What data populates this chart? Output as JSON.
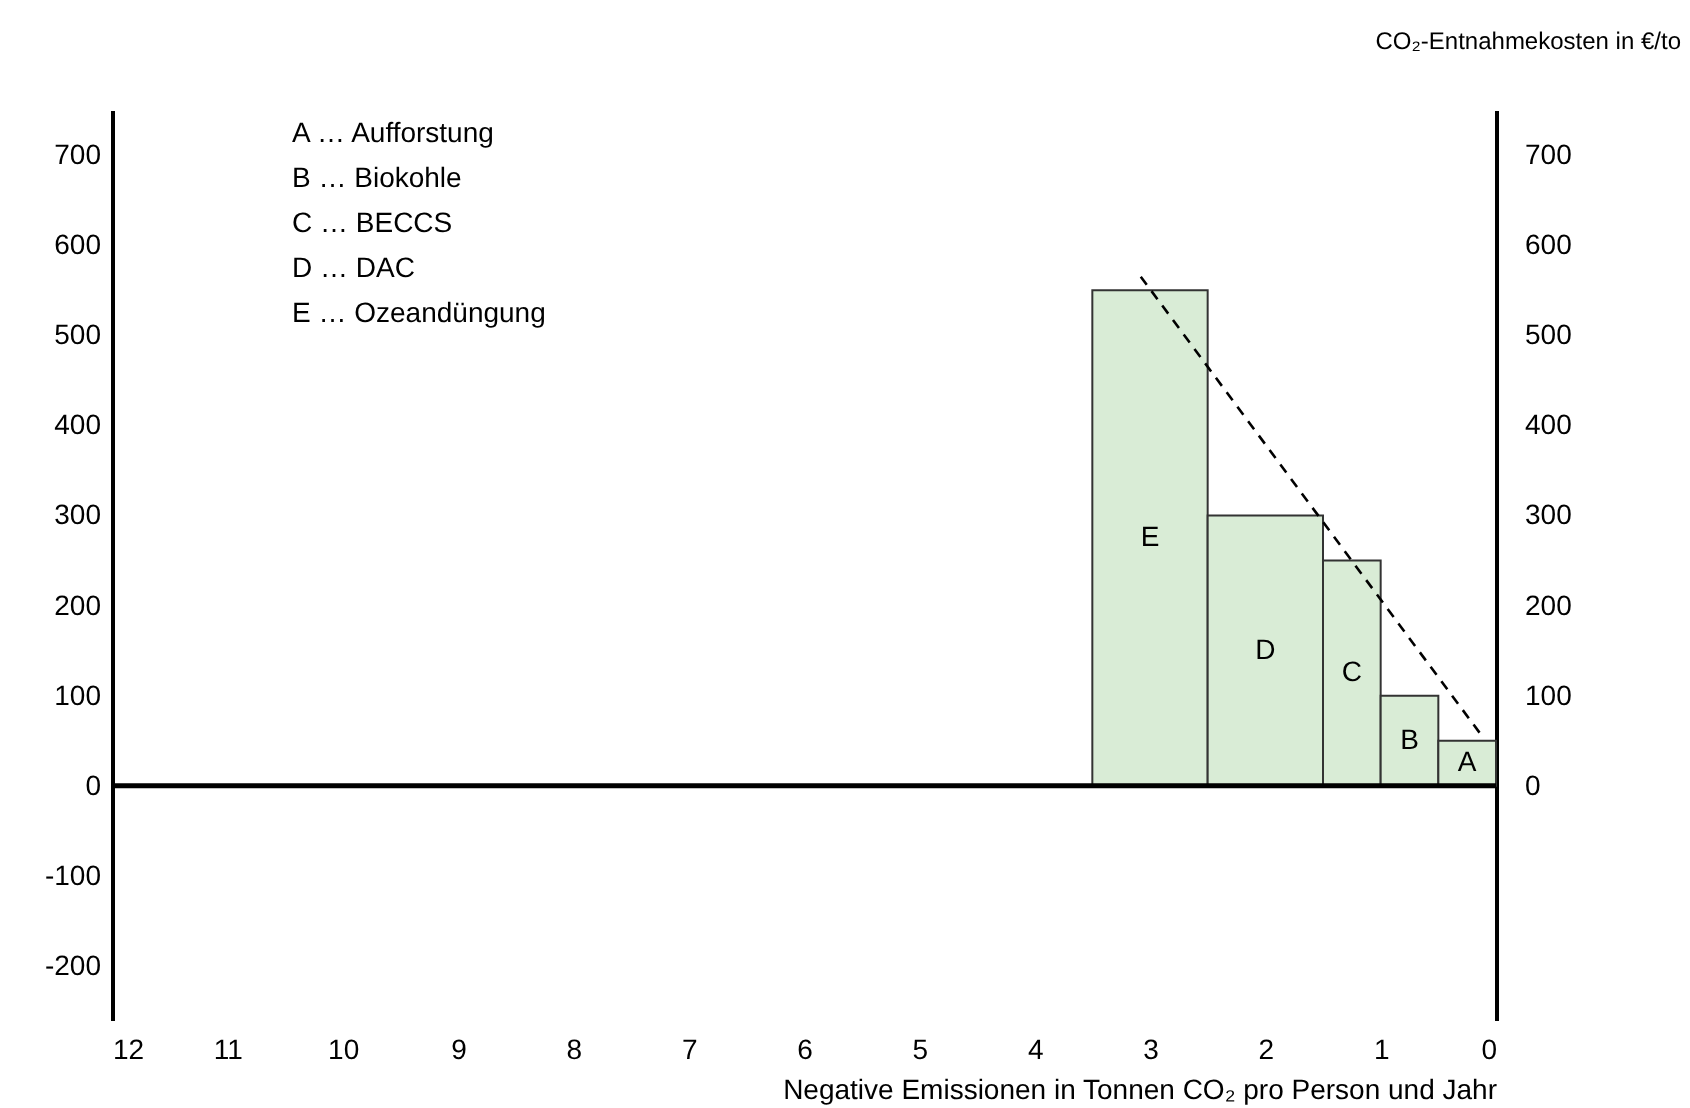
{
  "chart_data": {
    "type": "histogram",
    "bins": [
      3.5,
      2.5,
      1.5,
      1,
      0.5,
      0
    ],
    "values": [
      550,
      300,
      250,
      100,
      50
    ],
    "color": "#d9ecd6",
    "series": [
      {
        "type": "line",
        "x": [
          3.08,
          0.12
        ],
        "values": [
          565,
          55
        ],
        "color": "#000000",
        "line_style": "dashed"
      }
    ],
    "xlim": [
      12,
      0
    ],
    "xticks": [
      12,
      11,
      10,
      9,
      8,
      7,
      6,
      5,
      4,
      3,
      2,
      1,
      0
    ],
    "ylim": [
      -260,
      750
    ],
    "yticks": [
      -200,
      -100,
      0,
      100,
      200,
      300,
      400,
      500,
      600,
      700
    ],
    "y2lim": [
      -260,
      750
    ],
    "y2ticks": [
      0,
      100,
      200,
      300,
      400,
      500,
      600,
      700
    ],
    "xlabel": "Negative Emissionen in Tonnen CO₂ pro Person und Jahr",
    "y2label": "CO₂-Entnahmekosten in €/to",
    "ref_lines": [
      {
        "axis": "y",
        "value": 0,
        "color": "#000000"
      }
    ],
    "grid": false,
    "annotations": [
      "A … Aufforstung",
      "B … Biokohle",
      "C … BECCS",
      "D … DAC",
      "E … Ozeandüngung"
    ],
    "value_labels": [
      "E",
      "D",
      "C",
      "B",
      "A"
    ]
  }
}
